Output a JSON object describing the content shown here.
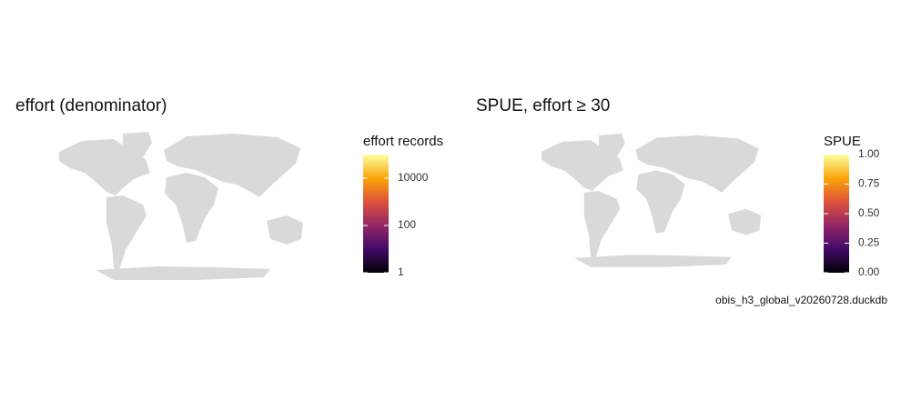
{
  "panels": [
    {
      "title": "effort (denominator)",
      "legend": {
        "title": "effort records",
        "scale": "log",
        "lim": [
          1,
          100000
        ],
        "ticks": [
          1,
          100,
          10000
        ],
        "colors": [
          "#000004",
          "#420a68",
          "#932667",
          "#dd513a",
          "#fca50a",
          "#fcffa4"
        ]
      }
    },
    {
      "title": "SPUE, effort ≥ 30",
      "legend": {
        "title": "SPUE",
        "scale": "linear",
        "lim": [
          0,
          1
        ],
        "ticks": [
          {
            "value": 0,
            "label": "0.00"
          },
          {
            "value": 0.25,
            "label": "0.25"
          },
          {
            "value": 0.5,
            "label": "0.50"
          },
          {
            "value": 0.75,
            "label": "0.75"
          },
          {
            "value": 1,
            "label": "1.00"
          }
        ],
        "colors": [
          "#000004",
          "#420a68",
          "#932667",
          "#dd513a",
          "#fca50a",
          "#fcffa4"
        ]
      }
    }
  ],
  "caption": "obis_h3_global_v20260728.duckdb"
}
